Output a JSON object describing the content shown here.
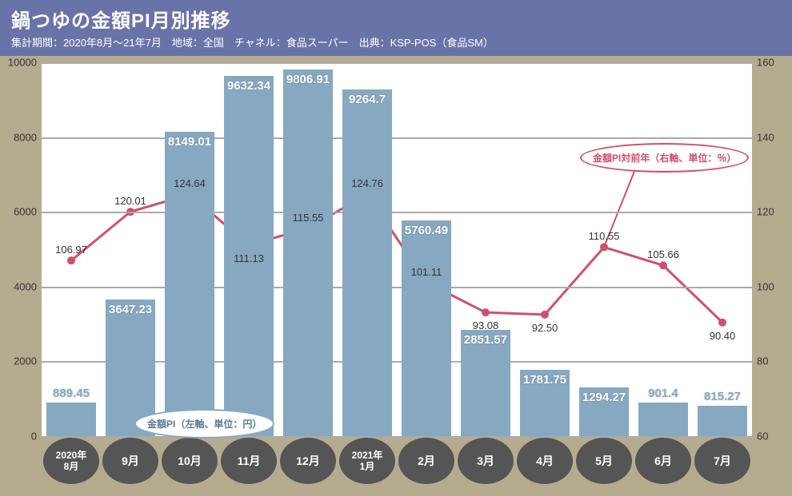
{
  "header": {
    "title": "鍋つゆの金額PI月別推移",
    "subtitle": "集計期間：2020年8月～21年7月　地域：全国　チャネル：食品スーパー　出典：KSP-POS（食品SM）"
  },
  "chart": {
    "type": "bar+line",
    "background_color": "#ffffff",
    "outer_background": "#b5ab8f",
    "bar_color": "#87a8c1",
    "line_color": "#d0506a",
    "grid_color": "#aaaaaa",
    "categories": [
      {
        "label": "2020年\n8月",
        "twoline": true
      },
      {
        "label": "9月"
      },
      {
        "label": "10月"
      },
      {
        "label": "11月"
      },
      {
        "label": "12月"
      },
      {
        "label": "2021年\n1月",
        "twoline": true
      },
      {
        "label": "2月"
      },
      {
        "label": "3月"
      },
      {
        "label": "4月"
      },
      {
        "label": "5月"
      },
      {
        "label": "6月"
      },
      {
        "label": "7月"
      }
    ],
    "left_axis": {
      "min": 0,
      "max": 10000,
      "ticks": [
        0,
        2000,
        4000,
        6000,
        8000,
        10000
      ],
      "title": "金額PI（左軸、単位：円）"
    },
    "right_axis": {
      "min": 60,
      "max": 160,
      "ticks": [
        60,
        80,
        100,
        120,
        140,
        160
      ],
      "title": "金額PI対前年（右軸、単位：％）"
    },
    "bar_values": [
      889.45,
      3647.23,
      8149.01,
      9632.34,
      9806.91,
      9264.7,
      5760.49,
      2851.57,
      1781.75,
      1294.27,
      901.4,
      815.27
    ],
    "bar_label_text": [
      "889.45",
      "3647.23",
      "8149.01",
      "9632.34",
      "9806.91",
      "9264.7",
      "5760.49",
      "2851.57",
      "1781.75",
      "1294.27",
      "901.4",
      "815.27"
    ],
    "line_values": [
      106.97,
      120.01,
      124.64,
      111.13,
      115.55,
      124.76,
      101.11,
      93.08,
      92.5,
      110.55,
      105.66,
      90.4
    ],
    "line_label_text": [
      "106.97",
      "120.01",
      "124.64",
      "111.13",
      "115.55",
      "124.76",
      "101.11",
      "93.08",
      "92.50",
      "110.55",
      "105.66",
      "90.40"
    ]
  }
}
